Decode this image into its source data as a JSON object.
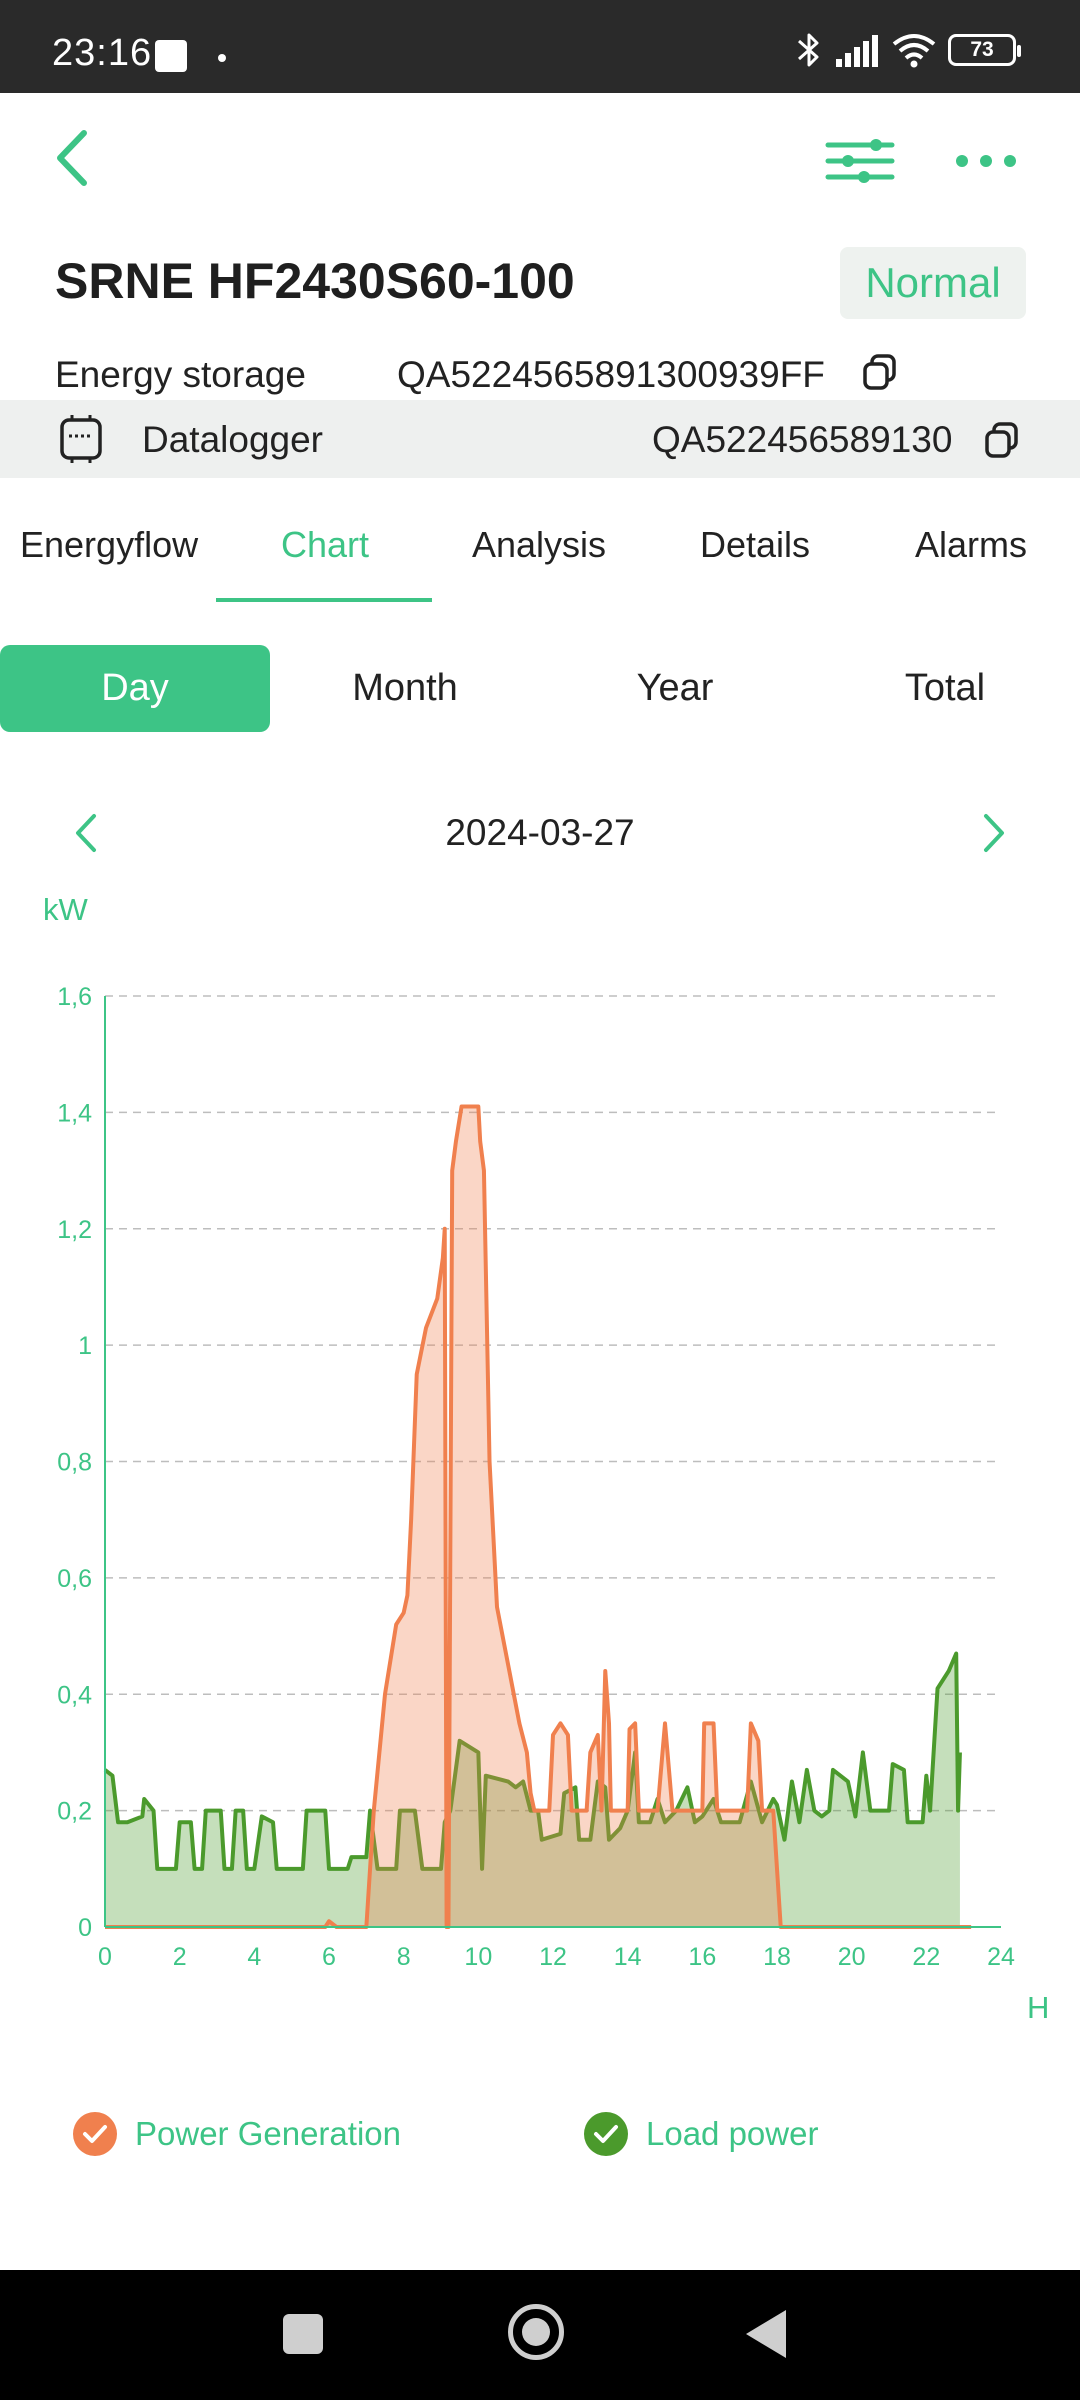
{
  "status_bar": {
    "time": "23:16",
    "battery": "73"
  },
  "header": {
    "title": "SRNE HF2430S60-100",
    "status": "Normal"
  },
  "energy_storage": {
    "label": "Energy storage",
    "serial": "QA5224565891300939FF"
  },
  "datalogger": {
    "label": "Datalogger",
    "serial": "QA522456589130"
  },
  "tabs": [
    "Energyflow",
    "Chart",
    "Analysis",
    "Details",
    "Alarms"
  ],
  "active_tab": "Chart",
  "periods": [
    "Day",
    "Month",
    "Year",
    "Total"
  ],
  "active_period": "Day",
  "date": "2024-03-27",
  "colors": {
    "accent": "#3dc486",
    "generation": "#f0804e",
    "load": "#4b9a2c"
  },
  "chart_data": {
    "type": "area",
    "ylabel": "kW",
    "xlabel": "H",
    "xlim": [
      0,
      24
    ],
    "ylim": [
      0,
      1.6
    ],
    "x_ticks": [
      "0",
      "2",
      "4",
      "6",
      "8",
      "10",
      "12",
      "14",
      "16",
      "18",
      "20",
      "22",
      "24"
    ],
    "y_ticks": [
      "0",
      "0,2",
      "0,4",
      "0,6",
      "0,8",
      "1",
      "1,2",
      "1,4",
      "1,6"
    ],
    "grid": "horizontal-dashed",
    "legend_position": "bottom",
    "series": [
      {
        "name": "Power Generation",
        "color": "#f0804e",
        "points": [
          [
            0,
            0
          ],
          [
            5.9,
            0
          ],
          [
            6.0,
            0.01
          ],
          [
            6.2,
            0
          ],
          [
            7.0,
            0
          ],
          [
            7.2,
            0.2
          ],
          [
            7.5,
            0.4
          ],
          [
            7.8,
            0.52
          ],
          [
            8.0,
            0.54
          ],
          [
            8.1,
            0.57
          ],
          [
            8.2,
            0.7
          ],
          [
            8.35,
            0.95
          ],
          [
            8.6,
            1.03
          ],
          [
            8.9,
            1.08
          ],
          [
            9.05,
            1.15
          ],
          [
            9.1,
            1.2
          ],
          [
            9.15,
            0
          ],
          [
            9.2,
            0
          ],
          [
            9.3,
            1.3
          ],
          [
            9.4,
            1.35
          ],
          [
            9.55,
            1.41
          ],
          [
            10.0,
            1.41
          ],
          [
            10.05,
            1.35
          ],
          [
            10.15,
            1.3
          ],
          [
            10.3,
            0.8
          ],
          [
            10.5,
            0.55
          ],
          [
            10.8,
            0.45
          ],
          [
            11.1,
            0.35
          ],
          [
            11.3,
            0.3
          ],
          [
            11.4,
            0.23
          ],
          [
            11.5,
            0.2
          ],
          [
            11.9,
            0.2
          ],
          [
            12.0,
            0.33
          ],
          [
            12.2,
            0.35
          ],
          [
            12.4,
            0.33
          ],
          [
            12.5,
            0.2
          ],
          [
            12.9,
            0.2
          ],
          [
            13.0,
            0.3
          ],
          [
            13.2,
            0.33
          ],
          [
            13.3,
            0.2
          ],
          [
            13.4,
            0.44
          ],
          [
            13.5,
            0.35
          ],
          [
            13.55,
            0.2
          ],
          [
            14.0,
            0.2
          ],
          [
            14.05,
            0.34
          ],
          [
            14.2,
            0.35
          ],
          [
            14.3,
            0.2
          ],
          [
            14.8,
            0.2
          ],
          [
            15.0,
            0.35
          ],
          [
            15.2,
            0.2
          ],
          [
            16.0,
            0.2
          ],
          [
            16.05,
            0.35
          ],
          [
            16.3,
            0.35
          ],
          [
            16.4,
            0.2
          ],
          [
            17.2,
            0.2
          ],
          [
            17.3,
            0.35
          ],
          [
            17.5,
            0.32
          ],
          [
            17.6,
            0.2
          ],
          [
            17.9,
            0.2
          ],
          [
            18.1,
            0
          ],
          [
            23.2,
            0
          ]
        ]
      },
      {
        "name": "Load power",
        "color": "#4b9a2c",
        "points": [
          [
            0,
            0.27
          ],
          [
            0.2,
            0.26
          ],
          [
            0.35,
            0.18
          ],
          [
            0.6,
            0.18
          ],
          [
            1.0,
            0.19
          ],
          [
            1.05,
            0.22
          ],
          [
            1.3,
            0.2
          ],
          [
            1.4,
            0.1
          ],
          [
            1.9,
            0.1
          ],
          [
            2.0,
            0.18
          ],
          [
            2.3,
            0.18
          ],
          [
            2.4,
            0.1
          ],
          [
            2.6,
            0.1
          ],
          [
            2.7,
            0.2
          ],
          [
            3.1,
            0.2
          ],
          [
            3.2,
            0.1
          ],
          [
            3.4,
            0.1
          ],
          [
            3.5,
            0.2
          ],
          [
            3.7,
            0.2
          ],
          [
            3.8,
            0.1
          ],
          [
            4.0,
            0.1
          ],
          [
            4.2,
            0.19
          ],
          [
            4.5,
            0.18
          ],
          [
            4.6,
            0.1
          ],
          [
            5.3,
            0.1
          ],
          [
            5.4,
            0.2
          ],
          [
            5.9,
            0.2
          ],
          [
            6.0,
            0.1
          ],
          [
            6.5,
            0.1
          ],
          [
            6.6,
            0.12
          ],
          [
            7.0,
            0.12
          ],
          [
            7.1,
            0.2
          ],
          [
            7.3,
            0.1
          ],
          [
            7.8,
            0.1
          ],
          [
            7.9,
            0.2
          ],
          [
            8.3,
            0.2
          ],
          [
            8.5,
            0.1
          ],
          [
            9.0,
            0.1
          ],
          [
            9.1,
            0.18
          ],
          [
            9.25,
            0.2
          ],
          [
            9.5,
            0.32
          ],
          [
            10.0,
            0.3
          ],
          [
            10.1,
            0.1
          ],
          [
            10.2,
            0.26
          ],
          [
            10.8,
            0.25
          ],
          [
            11.0,
            0.24
          ],
          [
            11.2,
            0.25
          ],
          [
            11.4,
            0.2
          ],
          [
            11.6,
            0.2
          ],
          [
            11.7,
            0.15
          ],
          [
            12.2,
            0.16
          ],
          [
            12.3,
            0.23
          ],
          [
            12.6,
            0.24
          ],
          [
            12.7,
            0.15
          ],
          [
            13.0,
            0.15
          ],
          [
            13.2,
            0.25
          ],
          [
            13.4,
            0.24
          ],
          [
            13.5,
            0.15
          ],
          [
            13.8,
            0.17
          ],
          [
            14.0,
            0.2
          ],
          [
            14.2,
            0.3
          ],
          [
            14.3,
            0.18
          ],
          [
            14.6,
            0.18
          ],
          [
            14.8,
            0.22
          ],
          [
            15.0,
            0.18
          ],
          [
            15.3,
            0.2
          ],
          [
            15.6,
            0.24
          ],
          [
            15.8,
            0.18
          ],
          [
            16.0,
            0.19
          ],
          [
            16.3,
            0.22
          ],
          [
            16.5,
            0.18
          ],
          [
            17.0,
            0.18
          ],
          [
            17.3,
            0.25
          ],
          [
            17.6,
            0.18
          ],
          [
            17.9,
            0.22
          ],
          [
            18.0,
            0.21
          ],
          [
            18.2,
            0.15
          ],
          [
            18.4,
            0.25
          ],
          [
            18.6,
            0.18
          ],
          [
            18.8,
            0.27
          ],
          [
            19.0,
            0.2
          ],
          [
            19.2,
            0.19
          ],
          [
            19.4,
            0.2
          ],
          [
            19.5,
            0.27
          ],
          [
            19.9,
            0.25
          ],
          [
            20.1,
            0.19
          ],
          [
            20.3,
            0.3
          ],
          [
            20.5,
            0.2
          ],
          [
            21.0,
            0.2
          ],
          [
            21.1,
            0.28
          ],
          [
            21.4,
            0.27
          ],
          [
            21.5,
            0.18
          ],
          [
            21.9,
            0.18
          ],
          [
            22.0,
            0.26
          ],
          [
            22.1,
            0.2
          ],
          [
            22.3,
            0.41
          ],
          [
            22.6,
            0.44
          ],
          [
            22.8,
            0.47
          ],
          [
            22.85,
            0.2
          ],
          [
            22.9,
            0.3
          ]
        ]
      }
    ]
  },
  "legend": {
    "generation_label": "Power Generation",
    "load_label": "Load power"
  }
}
